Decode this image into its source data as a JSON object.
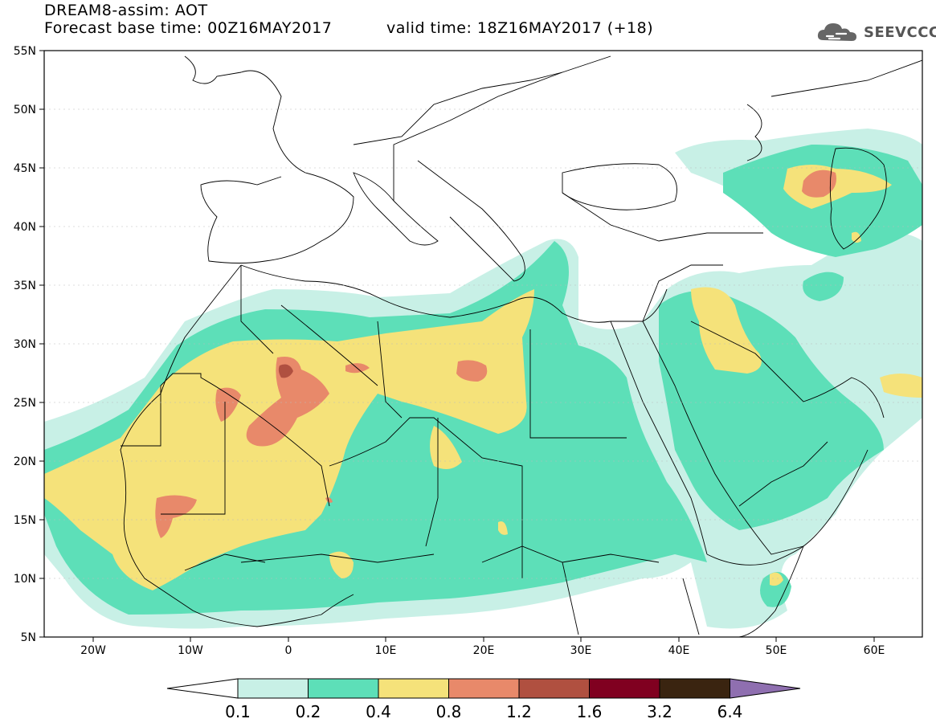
{
  "header": {
    "title": "DREAM8-assim: AOT",
    "base_time": "Forecast base time: 00Z16MAY2017",
    "valid_time": "valid time: 18Z16MAY2017 (+18)",
    "logo_text": "SEEVCCC"
  },
  "map": {
    "lat_labels": [
      "55N",
      "50N",
      "45N",
      "40N",
      "35N",
      "30N",
      "25N",
      "20N",
      "15N",
      "10N",
      "5N"
    ],
    "lon_labels": [
      "20W",
      "10W",
      "0",
      "10E",
      "20E",
      "30E",
      "40E",
      "50E",
      "60E"
    ]
  },
  "colorbar": {
    "labels": [
      "0.1",
      "0.2",
      "0.4",
      "0.8",
      "1.2",
      "1.6",
      "3.2",
      "6.4"
    ],
    "colors": [
      "#c8f0e6",
      "#5ddfb8",
      "#f5e27a",
      "#e8896a",
      "#b05040",
      "#800020",
      "#3a2410",
      "#8f6fb0"
    ]
  }
}
